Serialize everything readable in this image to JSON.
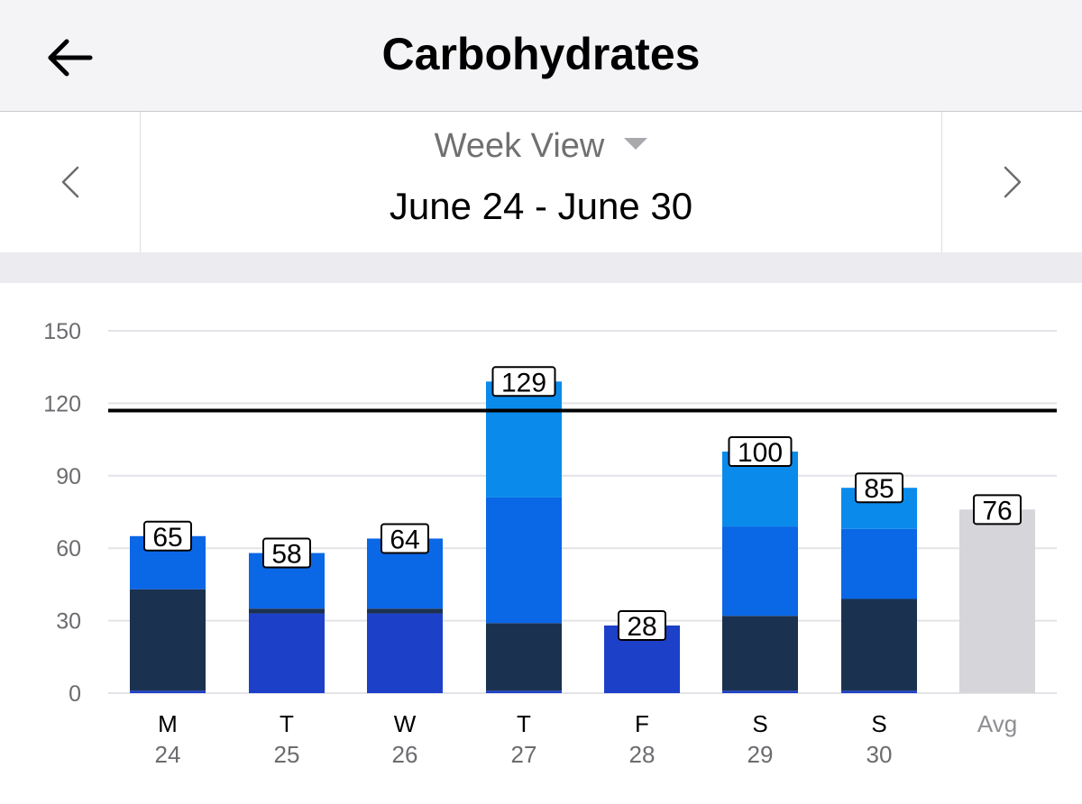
{
  "header": {
    "title": "Carbohydrates",
    "back_icon": "back-arrow-icon"
  },
  "date_nav": {
    "view_label": "Week View",
    "range": "June 24 - June 30",
    "prev_icon": "chevron-left-icon",
    "next_icon": "chevron-right-icon",
    "dropdown_icon": "caret-down-icon"
  },
  "colors": {
    "navy": "#1b3150",
    "royal": "#1d40c8",
    "blue": "#0a67e6",
    "sky": "#0a8bec",
    "avg": "#d5d5da",
    "goal_line": "#000000"
  },
  "chart_data": {
    "type": "bar",
    "stacked": true,
    "yticks": [
      0,
      30,
      60,
      90,
      120,
      150
    ],
    "ylim": [
      0,
      150
    ],
    "goal": 117,
    "grid": true,
    "days": [
      {
        "day": "M",
        "date": "24",
        "total": 65,
        "segments": [
          {
            "value": 1,
            "color": "royal"
          },
          {
            "value": 42,
            "color": "navy"
          },
          {
            "value": 22,
            "color": "blue"
          }
        ]
      },
      {
        "day": "T",
        "date": "25",
        "total": 58,
        "segments": [
          {
            "value": 33,
            "color": "royal"
          },
          {
            "value": 2,
            "color": "navy"
          },
          {
            "value": 23,
            "color": "blue"
          }
        ]
      },
      {
        "day": "W",
        "date": "26",
        "total": 64,
        "segments": [
          {
            "value": 33,
            "color": "royal"
          },
          {
            "value": 2,
            "color": "navy"
          },
          {
            "value": 29,
            "color": "blue"
          }
        ]
      },
      {
        "day": "T",
        "date": "27",
        "total": 129,
        "segments": [
          {
            "value": 1,
            "color": "royal"
          },
          {
            "value": 28,
            "color": "navy"
          },
          {
            "value": 52,
            "color": "blue"
          },
          {
            "value": 48,
            "color": "sky"
          }
        ]
      },
      {
        "day": "F",
        "date": "28",
        "total": 28,
        "segments": [
          {
            "value": 28,
            "color": "royal"
          }
        ]
      },
      {
        "day": "S",
        "date": "29",
        "total": 100,
        "segments": [
          {
            "value": 1,
            "color": "royal"
          },
          {
            "value": 31,
            "color": "navy"
          },
          {
            "value": 37,
            "color": "blue"
          },
          {
            "value": 31,
            "color": "sky"
          }
        ]
      },
      {
        "day": "S",
        "date": "30",
        "total": 85,
        "segments": [
          {
            "value": 1,
            "color": "royal"
          },
          {
            "value": 38,
            "color": "navy"
          },
          {
            "value": 29,
            "color": "blue"
          },
          {
            "value": 17,
            "color": "sky"
          }
        ]
      }
    ],
    "average": {
      "label": "Avg",
      "value": 76
    }
  }
}
